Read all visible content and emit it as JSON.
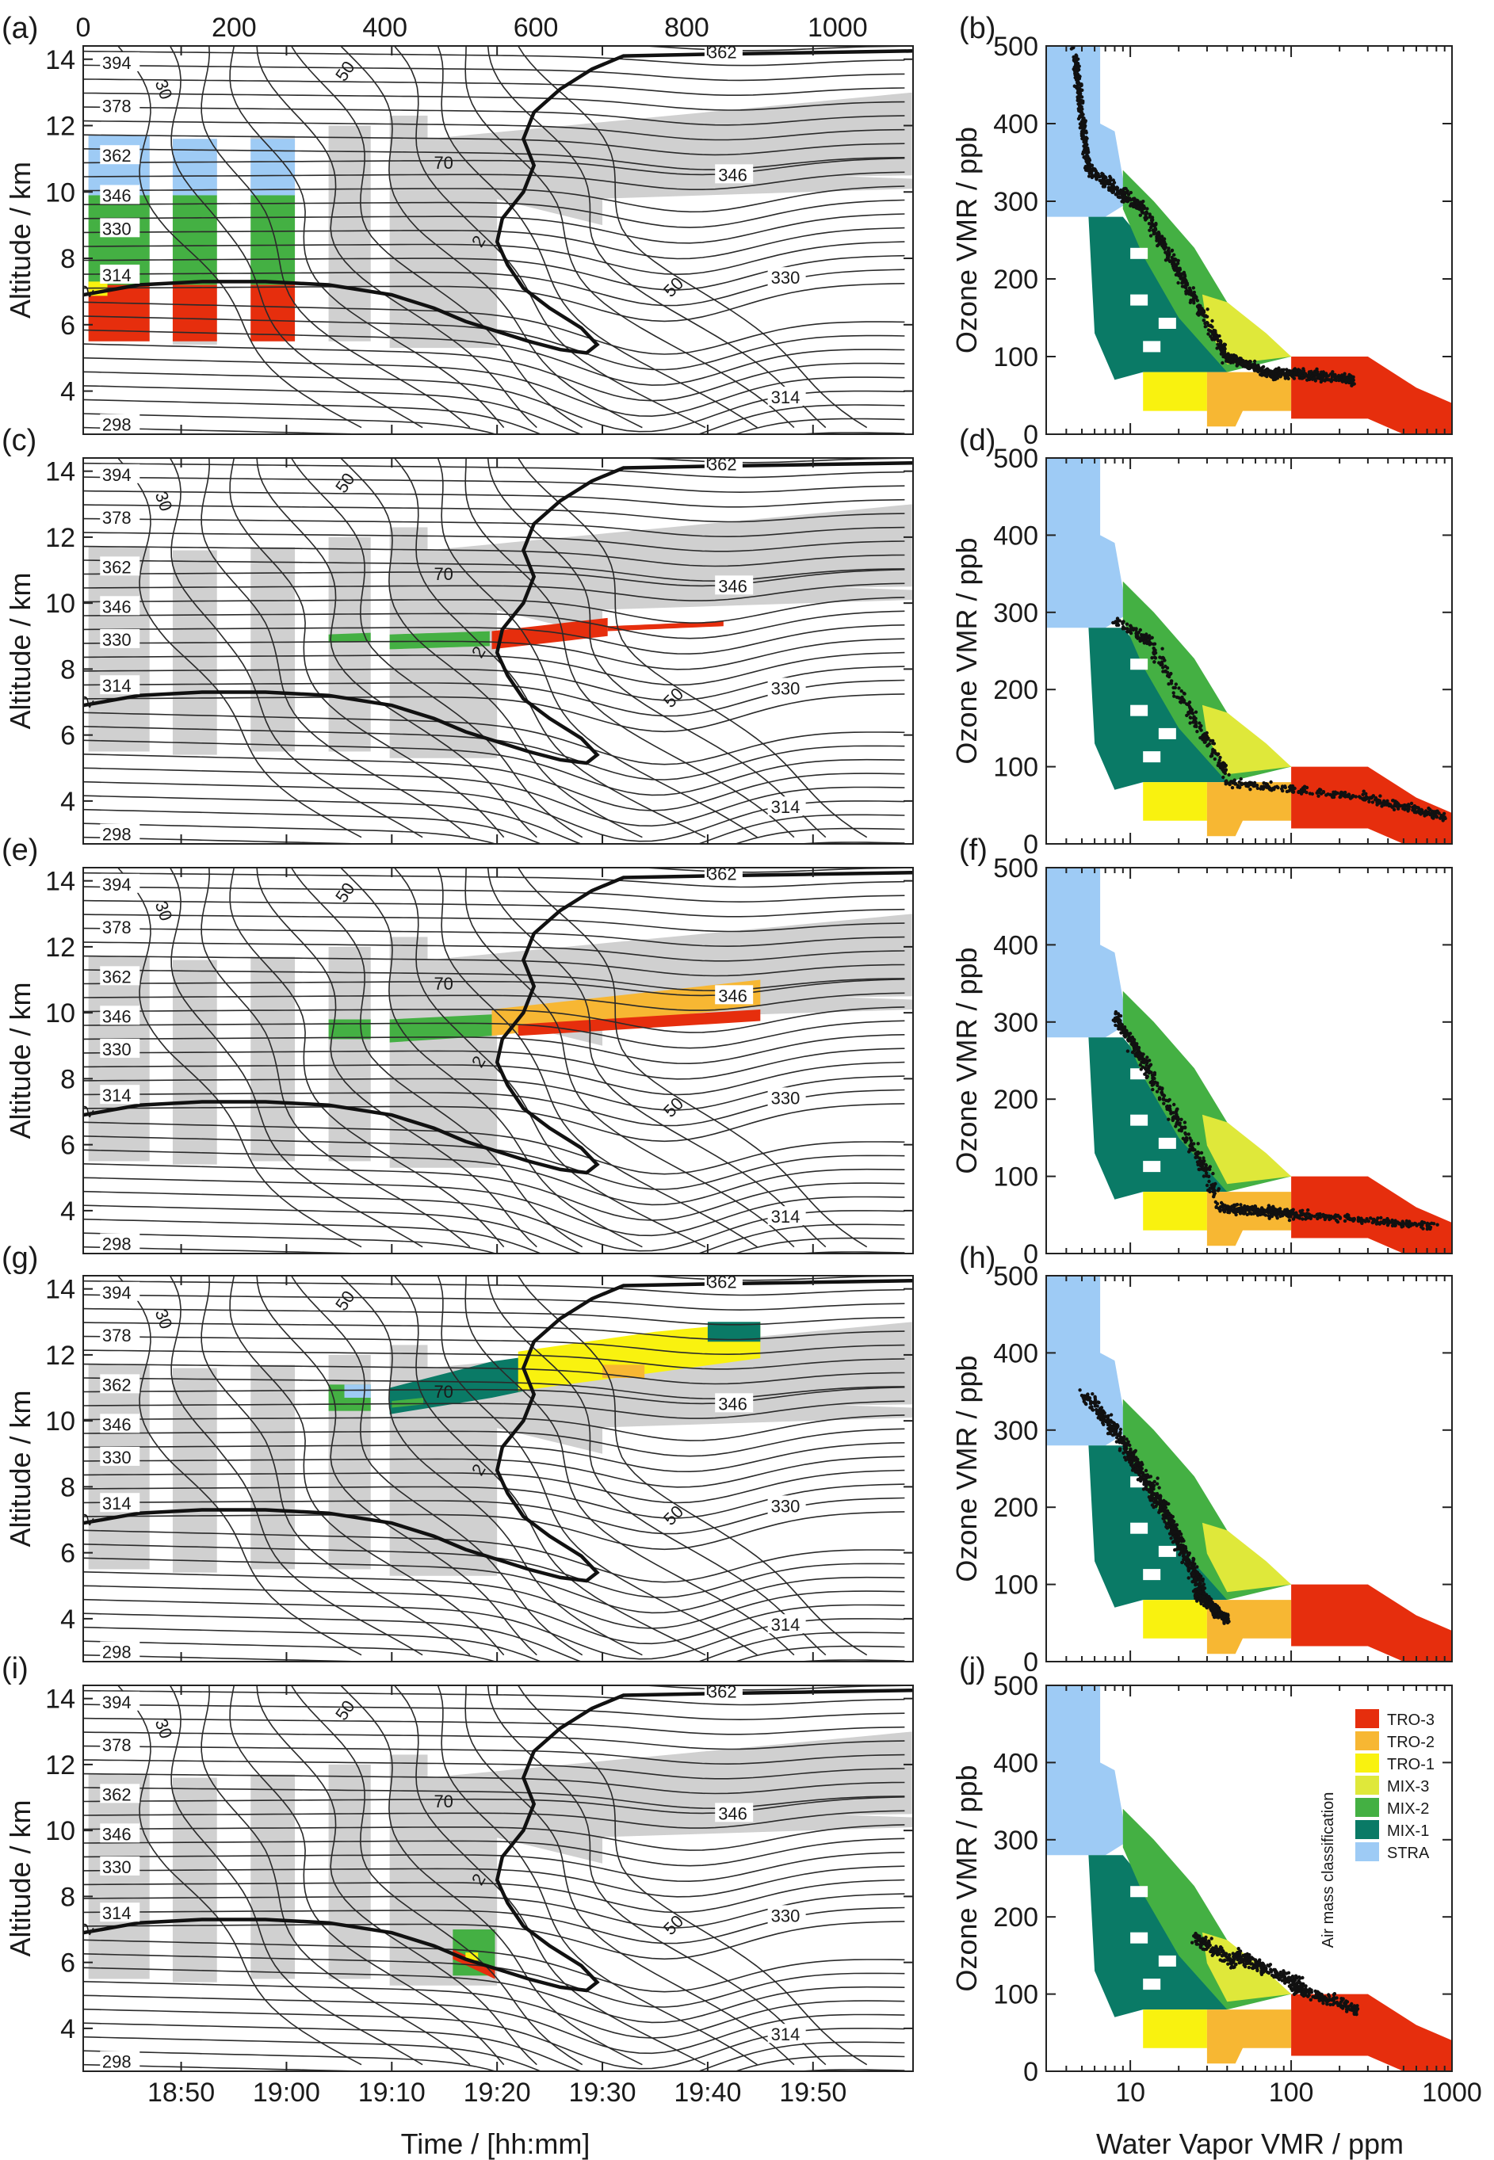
{
  "figure": {
    "panels": [
      {
        "id": "a",
        "label": "(a)"
      },
      {
        "id": "b",
        "label": "(b)"
      },
      {
        "id": "c",
        "label": "(c)"
      },
      {
        "id": "d",
        "label": "(d)"
      },
      {
        "id": "e",
        "label": "(e)"
      },
      {
        "id": "f",
        "label": "(f)"
      },
      {
        "id": "g",
        "label": "(g)"
      },
      {
        "id": "h",
        "label": "(h)"
      },
      {
        "id": "i",
        "label": "(i)"
      },
      {
        "id": "j",
        "label": "(j)"
      }
    ],
    "left_xlabel": "Time / [hh:mm]",
    "left_ylabel": "Altitude / km",
    "right_xlabel": "Water Vapor VMR / ppm",
    "right_ylabel": "Ozone VMR / ppb",
    "top_axis_ticks": [
      "0",
      "200",
      "400",
      "600",
      "800",
      "1000"
    ],
    "legend": {
      "title": "Air mass classification",
      "entries": [
        {
          "label": "TRO-3",
          "color": "#e62e0d"
        },
        {
          "label": "TRO-2",
          "color": "#f7b733"
        },
        {
          "label": "TRO-1",
          "color": "#f9f20f"
        },
        {
          "label": "MIX-3",
          "color": "#dfe83a"
        },
        {
          "label": "MIX-2",
          "color": "#44b043"
        },
        {
          "label": "MIX-1",
          "color": "#0a7a66"
        },
        {
          "label": "STRA",
          "color": "#9ecbf5"
        }
      ]
    }
  },
  "chart_data": [
    {
      "type": "contour",
      "panels": [
        "a",
        "c",
        "e",
        "g",
        "i"
      ],
      "xlabel": "Time / [hh:mm]",
      "ylabel": "Altitude / km",
      "x_ticks": [
        "18:50",
        "19:00",
        "19:10",
        "19:20",
        "19:30",
        "19:40",
        "19:50"
      ],
      "x_tick_minutes": [
        50,
        60,
        70,
        80,
        90,
        100,
        110
      ],
      "xlim_minutes": [
        40.7,
        119.5
      ],
      "y_ticks": [
        4,
        6,
        8,
        10,
        12,
        14
      ],
      "ylim": [
        2.7,
        14.4
      ],
      "top_axis": {
        "ticks": [
          0,
          200,
          400,
          600,
          800,
          1000
        ],
        "range": [
          0,
          1100
        ]
      },
      "theta_contour_labels": [
        "394",
        "378",
        "362",
        "346",
        "330",
        "314",
        "298"
      ],
      "theta_left_label_alt": [
        13.9,
        12.6,
        11.1,
        9.9,
        8.9,
        7.5,
        3.0
      ],
      "wind_labels": [
        {
          "text": "30",
          "minute": 47.5,
          "alt": 13.3,
          "angle": 70
        },
        {
          "text": "50",
          "minute": 65.5,
          "alt": 13.3,
          "angle": -55
        },
        {
          "text": "70",
          "minute": 74.0,
          "alt": 10.7,
          "angle": 0
        },
        {
          "text": "50",
          "minute": 96.5,
          "alt": 6.8,
          "angle": -45
        },
        {
          "text": "2",
          "minute": 78.5,
          "alt": 8.3,
          "angle": -60
        },
        {
          "text": "2",
          "minute": 41.3,
          "alt": 6.8,
          "angle": -60
        }
      ],
      "theta_right_labels": [
        {
          "text": "362",
          "minute": 100,
          "alt": 14.2
        },
        {
          "text": "346",
          "minute": 101,
          "alt": 10.5
        },
        {
          "text": "330",
          "minute": 106,
          "alt": 7.4
        },
        {
          "text": "314",
          "minute": 106,
          "alt": 3.8
        }
      ]
    },
    {
      "type": "scatter",
      "panels": [
        "b",
        "d",
        "f",
        "h",
        "j"
      ],
      "xlabel": "Water Vapor VMR / ppm",
      "ylabel": "Ozone VMR / ppb",
      "x_scale": "log",
      "xlim": [
        3,
        1000
      ],
      "x_ticks": [
        "10",
        "100",
        "1000"
      ],
      "ylim": [
        0,
        500
      ],
      "y_ticks": [
        "0",
        "100",
        "200",
        "300",
        "400",
        "500"
      ]
    }
  ]
}
